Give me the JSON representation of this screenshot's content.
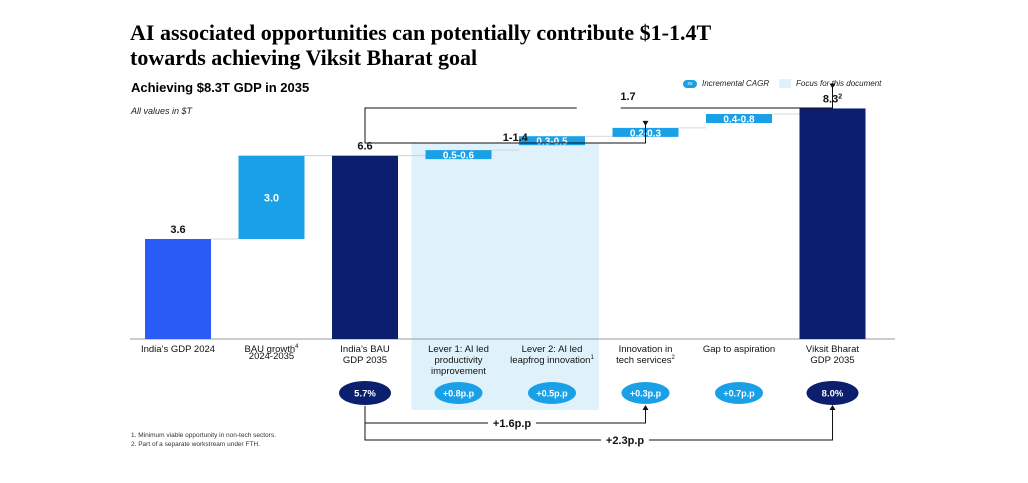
{
  "header": {
    "title_line1": "AI associated opportunities can potentially contribute $1-1.4T",
    "title_line2": "towards achieving Viksit Bharat goal",
    "subtitle": "Achieving $8.3T GDP in 2035",
    "units_note": "All values in $T"
  },
  "legend": {
    "cagr_label": "Incremental CAGR",
    "cagr_icon_text": "xx",
    "focus_label": "Focus for this document"
  },
  "colors": {
    "bright_blue": "#2b5bf5",
    "sky_blue": "#1aa0e6",
    "navy": "#0b1f6e",
    "focus_bg": "#dff2fb"
  },
  "chart_data": {
    "type": "bar",
    "subtype": "waterfall",
    "title": "Achieving $8.3T GDP in 2035",
    "ylabel": "All values in $T",
    "ylim": [
      0,
      9
    ],
    "categories": [
      {
        "label1": "India’s GDP 2024",
        "label2": "",
        "label3": "",
        "sup": "",
        "sup_after": 1
      },
      {
        "label1": "BAU growth",
        "label2": "2024-2035",
        "label3": "",
        "sup": "4",
        "sup_after": 1
      },
      {
        "label1": "India’s BAU",
        "label2": "GDP 2035",
        "label3": "",
        "sup": "",
        "sup_after": 1
      },
      {
        "label1": "Lever 1: AI led",
        "label2": "productivity",
        "label3": "improvement",
        "sup": "",
        "sup_after": 1
      },
      {
        "label1": "Lever 2: AI led",
        "label2": "leapfrog innovation",
        "label3": "",
        "sup": "1",
        "sup_after": 2
      },
      {
        "label1": "Innovation in",
        "label2": "tech services",
        "label3": "",
        "sup": "2",
        "sup_after": 2
      },
      {
        "label1": "Gap to aspiration",
        "label2": "",
        "label3": "",
        "sup": "",
        "sup_after": 1
      },
      {
        "label1": "Viksit Bharat",
        "label2": "GDP 2035",
        "label3": "",
        "sup": "",
        "sup_after": 1
      }
    ],
    "bars": [
      {
        "kind": "total",
        "start": 0,
        "end": 3.6,
        "label": "3.6",
        "color": "#2b5bf5",
        "label_pos": "above"
      },
      {
        "kind": "delta",
        "start": 3.6,
        "end": 6.6,
        "label": "3.0",
        "color": "#1aa0e6",
        "label_pos": "inside"
      },
      {
        "kind": "total",
        "start": 0,
        "end": 6.6,
        "label": "6.6",
        "color": "#0b1f6e",
        "label_pos": "above"
      },
      {
        "kind": "range",
        "low": 6.6,
        "high": 6.8,
        "label": "0.5-0.6",
        "color": "#1aa0e6"
      },
      {
        "kind": "range",
        "low": 7.1,
        "high": 7.3,
        "label": "0.3-0.5",
        "color": "#1aa0e6"
      },
      {
        "kind": "range",
        "low": 7.4,
        "high": 7.6,
        "label": "0.2-0.3",
        "color": "#1aa0e6"
      },
      {
        "kind": "range",
        "low": 7.9,
        "high": 8.1,
        "label": "0.4-0.8",
        "color": "#1aa0e6"
      },
      {
        "kind": "total",
        "start": 0,
        "end": 8.3,
        "label": "8.3",
        "label_sup": "2",
        "color": "#0b1f6e",
        "label_pos": "above"
      }
    ],
    "focus_range": [
      3,
      4
    ],
    "brackets": [
      {
        "label": "1.7",
        "from": 2,
        "to": 7
      },
      {
        "label": "1-1.4",
        "from": 2,
        "to": 5
      }
    ],
    "cagr_badges": [
      {
        "category": 2,
        "value": "5.7%",
        "style": "navy"
      },
      {
        "category": 3,
        "value": "+0.8p.p",
        "style": "light"
      },
      {
        "category": 4,
        "value": "+0.5p.p",
        "style": "light"
      },
      {
        "category": 5,
        "value": "+0.3p.p",
        "style": "light"
      },
      {
        "category": 6,
        "value": "+0.7p.p",
        "style": "light"
      },
      {
        "category": 7,
        "value": "8.0%",
        "style": "navy"
      }
    ],
    "cagr_brackets": [
      {
        "label": "+1.6p.p",
        "from": 2,
        "to": 5
      },
      {
        "label": "+2.3p.p",
        "from": 2,
        "to": 7
      }
    ]
  },
  "footnotes": [
    "1.   Minimum viable opportunity in non-tech sectors.",
    "2.   Part of a separate workstream under FTH."
  ]
}
